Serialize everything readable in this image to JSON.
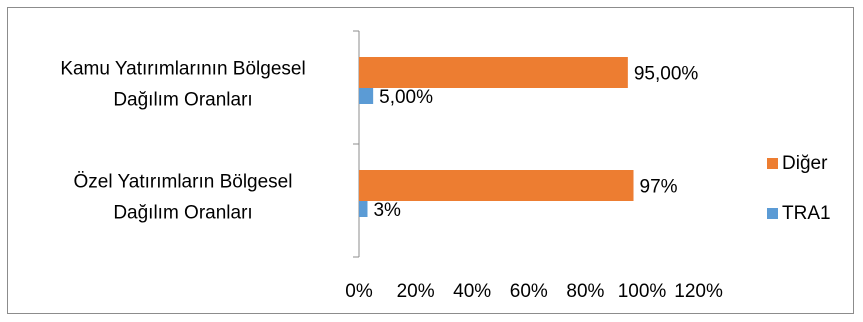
{
  "chart_data": {
    "type": "bar",
    "orientation": "horizontal",
    "categories": [
      [
        "Kamu Yatırımlarının Bölgesel",
        "Dağılım Oranları"
      ],
      [
        "Özel Yatırımların Bölgesel",
        "Dağılım Oranları"
      ]
    ],
    "series": [
      {
        "name": "Diğer",
        "color": "#ED7D31",
        "values": [
          95.0,
          97.0
        ],
        "labels": [
          "95,00%",
          "97%"
        ]
      },
      {
        "name": "TRA1",
        "color": "#5B9BD5",
        "values": [
          5.0,
          3.0
        ],
        "labels": [
          "5,00%",
          "3%"
        ]
      }
    ],
    "xlim": [
      0,
      120
    ],
    "xticks": [
      "0%",
      "20%",
      "40%",
      "60%",
      "80%",
      "100%",
      "120%"
    ],
    "grid": false,
    "legend": "right",
    "title": "",
    "xlabel": "",
    "ylabel": ""
  }
}
